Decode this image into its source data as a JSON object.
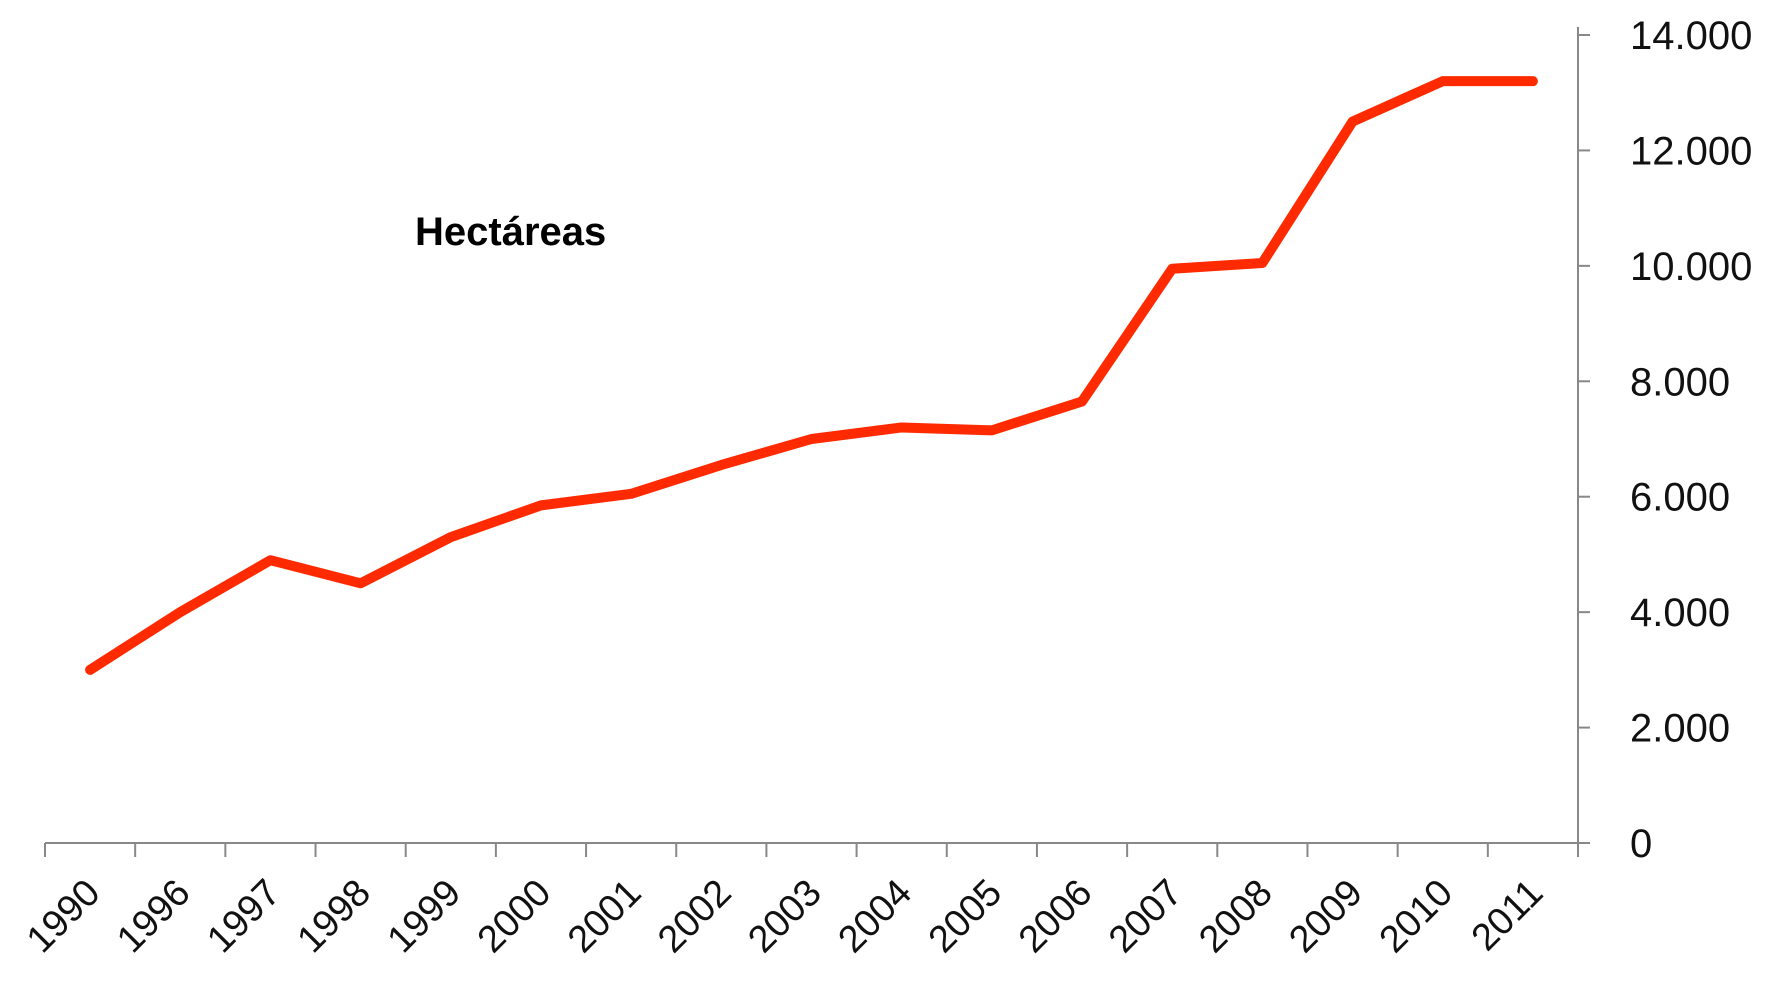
{
  "chart_data": {
    "type": "line",
    "title": "",
    "xlabel": "",
    "ylabel": "",
    "annotation": "Hectáreas",
    "categories": [
      "1990",
      "1996",
      "1997",
      "1998",
      "1999",
      "2000",
      "2001",
      "2002",
      "2003",
      "2004",
      "2005",
      "2006",
      "2007",
      "2008",
      "2009",
      "2010",
      "2011"
    ],
    "series": [
      {
        "values": [
          3000,
          4000,
          4900,
          4500,
          5300,
          5850,
          6050,
          6550,
          7000,
          7200,
          7150,
          7650,
          9950,
          10050,
          12500,
          13200,
          13200
        ],
        "color": "#ff2a00"
      }
    ],
    "ylim": [
      0,
      14000
    ],
    "yticks": [
      0,
      2000,
      4000,
      6000,
      8000,
      10000,
      12000,
      14000
    ],
    "ytick_labels": [
      "0",
      "2.000",
      "4.000",
      "6.000",
      "8.000",
      "10.000",
      "12.000",
      "14.000"
    ],
    "y_axis_position": "right",
    "grid": false,
    "legend": "none"
  }
}
